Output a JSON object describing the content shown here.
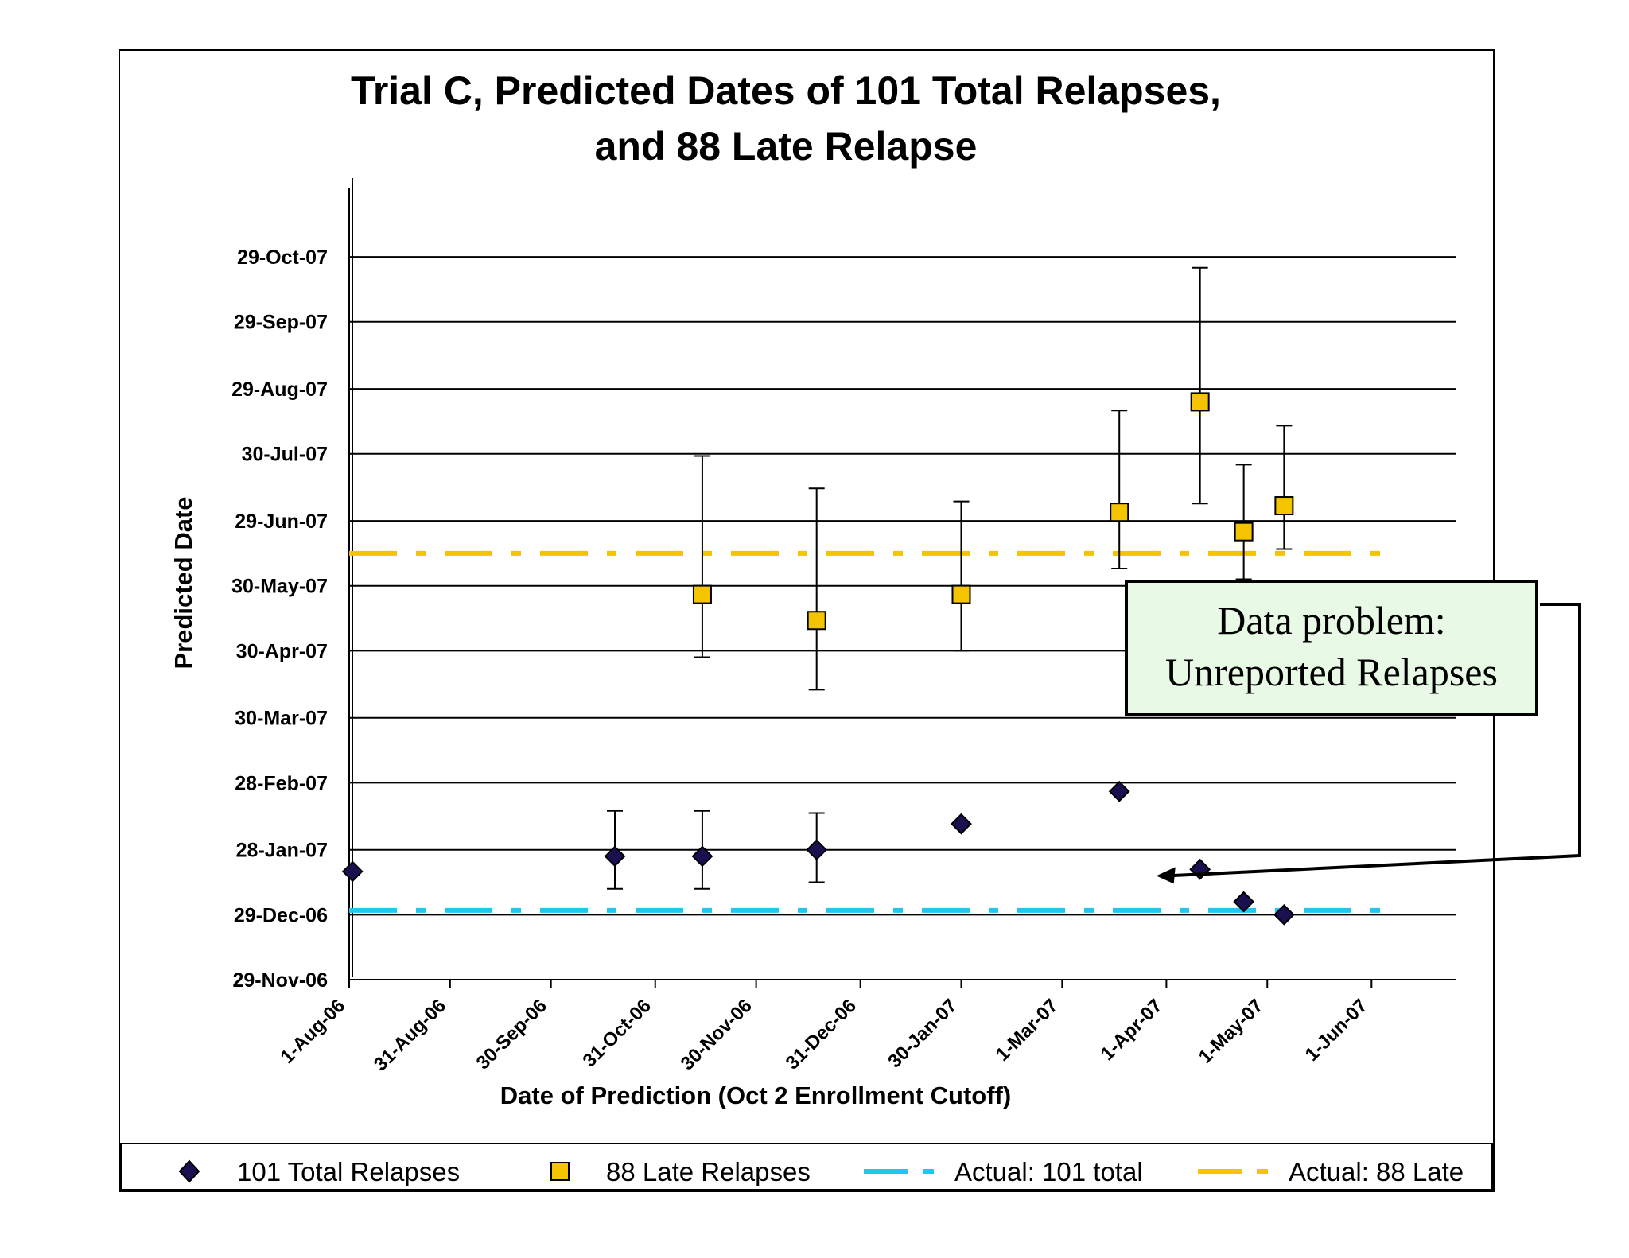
{
  "chart_data": {
    "type": "scatter",
    "title_lines": [
      "Trial C, Predicted Dates of 101 Total Relapses,",
      "and 88 Late Relapse"
    ],
    "xlabel": "Date of Prediction (Oct 2 Enrollment Cutoff)",
    "ylabel": "Predicted Date",
    "x_ticks": [
      "1-Aug-06",
      "31-Aug-06",
      "30-Sep-06",
      "31-Oct-06",
      "30-Nov-06",
      "31-Dec-06",
      "30-Jan-07",
      "1-Mar-07",
      "1-Apr-07",
      "1-May-07",
      "1-Jun-07"
    ],
    "y_ticks": [
      "29-Nov-06",
      "29-Dec-06",
      "28-Jan-07",
      "28-Feb-07",
      "30-Mar-07",
      "30-Apr-07",
      "30-May-07",
      "29-Jun-07",
      "30-Jul-07",
      "29-Aug-07",
      "29-Sep-07",
      "29-Oct-07"
    ],
    "xlim": [
      "2006-08-01",
      "2007-06-26"
    ],
    "ylim": [
      "2006-11-29",
      "2007-11-30"
    ],
    "grid": "horizontal",
    "legend_position": "bottom",
    "series": [
      {
        "name": "101 Total Relapses",
        "marker": "diamond",
        "color": "#1a1050",
        "points": [
          {
            "x": "2006-08-02",
            "y": "2007-01-18"
          },
          {
            "x": "2006-10-19",
            "y": "2007-01-25",
            "lo": "2007-01-10",
            "hi": "2007-02-15"
          },
          {
            "x": "2006-11-14",
            "y": "2007-01-25",
            "lo": "2007-01-10",
            "hi": "2007-02-15"
          },
          {
            "x": "2006-12-18",
            "y": "2007-01-28",
            "lo": "2007-01-13",
            "hi": "2007-02-14"
          },
          {
            "x": "2007-01-30",
            "y": "2007-02-09"
          },
          {
            "x": "2007-03-18",
            "y": "2007-02-24"
          },
          {
            "x": "2007-04-11",
            "y": "2007-01-19"
          },
          {
            "x": "2007-04-24",
            "y": "2007-01-04"
          },
          {
            "x": "2007-05-06",
            "y": "2006-12-29"
          }
        ]
      },
      {
        "name": "88 Late Relapses",
        "marker": "square",
        "color": "#f5c400",
        "points": [
          {
            "x": "2006-11-14",
            "y": "2007-05-26",
            "lo": "2007-04-27",
            "hi": "2007-07-29"
          },
          {
            "x": "2006-12-18",
            "y": "2007-05-14",
            "lo": "2007-04-12",
            "hi": "2007-07-14"
          },
          {
            "x": "2007-01-30",
            "y": "2007-05-26",
            "lo": "2007-04-30",
            "hi": "2007-07-08"
          },
          {
            "x": "2007-03-18",
            "y": "2007-07-03",
            "lo": "2007-06-07",
            "hi": "2007-08-19"
          },
          {
            "x": "2007-04-11",
            "y": "2007-08-23",
            "lo": "2007-07-07",
            "hi": "2007-10-24"
          },
          {
            "x": "2007-04-24",
            "y": "2007-06-24",
            "lo": "2007-06-02",
            "hi": "2007-07-25"
          },
          {
            "x": "2007-05-06",
            "y": "2007-07-06",
            "lo": "2007-06-16",
            "hi": "2007-08-12"
          }
        ]
      },
      {
        "name": "Actual: 101 total",
        "marker": "dashed-line",
        "color": "#1ec8f0",
        "x": [
          "2006-08-01",
          "2007-06-05"
        ],
        "y": [
          "2006-12-31",
          "2006-12-31"
        ]
      },
      {
        "name": "Actual: 88 Late",
        "marker": "dashed-line",
        "color": "#f5c400",
        "x": [
          "2006-08-01",
          "2007-06-05"
        ],
        "y": [
          "2007-06-14",
          "2007-06-14"
        ]
      }
    ],
    "annotation": {
      "lines": [
        "Data problem:",
        "Unreported Relapses"
      ],
      "background": "#e8fae6",
      "points_to": {
        "x": "2007-03-29",
        "y": "2007-01-16"
      }
    }
  }
}
